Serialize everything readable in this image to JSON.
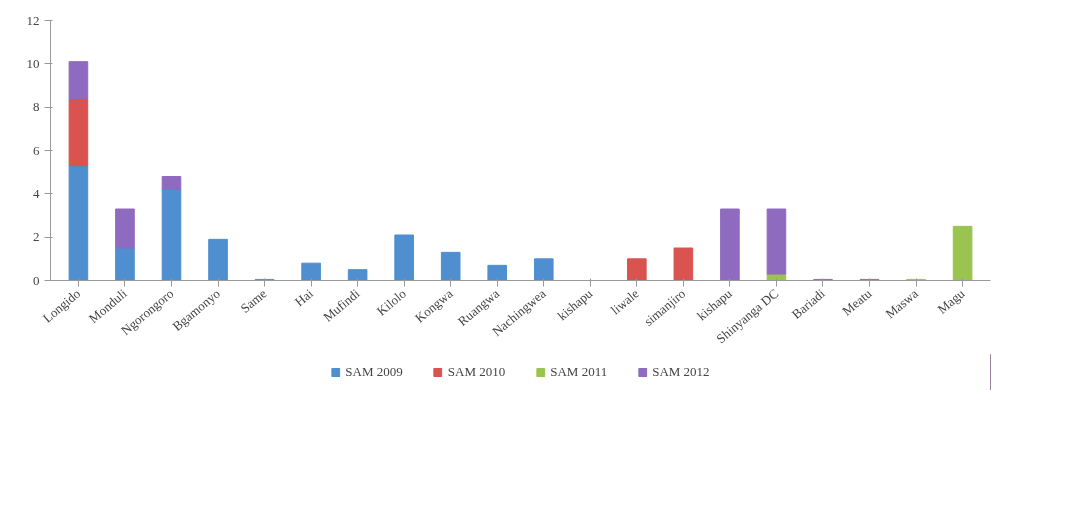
{
  "chart_data": {
    "type": "bar",
    "stacked": true,
    "categories": [
      "Longido",
      "Monduli",
      "Ngorongoro",
      "Bgamonyo",
      "Same",
      "Hai",
      "Mufindi",
      "Kilolo",
      "Kongwa",
      "Ruangwa",
      "Nachingwea",
      "kishapu",
      "liwale",
      "simanjiro",
      "kishapu",
      "Shinyanga DC",
      "Bariadi",
      "Meatu",
      "Maswa",
      "Magu"
    ],
    "series": [
      {
        "name": "SAM 2009",
        "color": "#4f8fd0",
        "values": [
          5.3,
          1.5,
          4.2,
          1.9,
          0.05,
          0.8,
          0.5,
          2.1,
          1.3,
          0.7,
          1.0,
          0,
          0,
          0,
          0,
          0,
          0,
          0,
          0,
          0
        ]
      },
      {
        "name": "SAM 2010",
        "color": "#d9534f",
        "values": [
          3.1,
          0,
          0,
          0,
          0,
          0,
          0,
          0,
          0,
          0,
          0,
          0,
          1.0,
          1.5,
          0,
          0,
          0,
          0,
          0,
          0
        ]
      },
      {
        "name": "SAM 2011",
        "color": "#9bc34f",
        "values": [
          0,
          0,
          0,
          0,
          0,
          0,
          0,
          0,
          0,
          0,
          0,
          0,
          0,
          0,
          0,
          0.3,
          0,
          0,
          0.05,
          2.5
        ]
      },
      {
        "name": "SAM 2012",
        "color": "#8e6bbf",
        "values": [
          1.7,
          1.8,
          0.6,
          0,
          0,
          0,
          0,
          0,
          0,
          0,
          0,
          0,
          0,
          0,
          3.3,
          3.0,
          0.05,
          0.05,
          0,
          0
        ]
      }
    ],
    "ylim": [
      0,
      12
    ],
    "yticks": [
      0,
      2,
      4,
      6,
      8,
      10,
      12
    ],
    "grid": false,
    "legend": "bottom"
  }
}
